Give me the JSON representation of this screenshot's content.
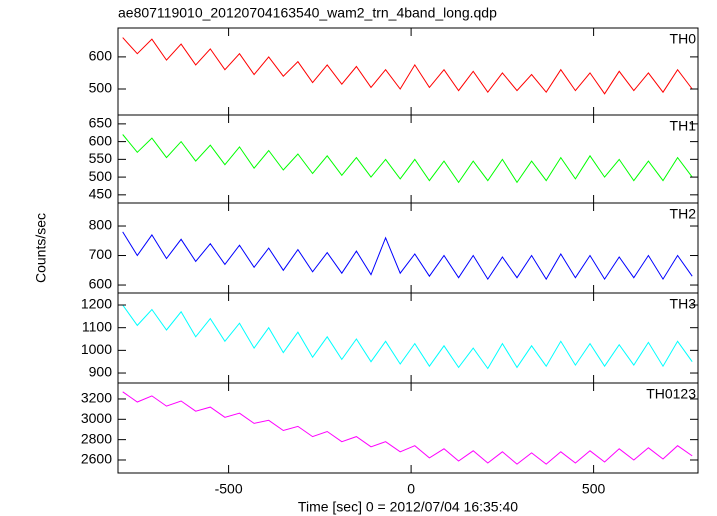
{
  "chart_data": [
    {
      "type": "line",
      "title": "ae807119010_20120704163540_wam2_trn_4band_long.qdp",
      "x": [
        -790,
        -750,
        -710,
        -670,
        -630,
        -590,
        -550,
        -510,
        -470,
        -430,
        -390,
        -350,
        -310,
        -270,
        -230,
        -190,
        -150,
        -110,
        -70,
        -30,
        10,
        50,
        90,
        130,
        170,
        210,
        250,
        290,
        330,
        370,
        410,
        450,
        490,
        530,
        570,
        610,
        650,
        690,
        730,
        770
      ],
      "series": [
        {
          "name": "TH0",
          "color": "#ff0000",
          "values": [
            660,
            610,
            655,
            590,
            640,
            575,
            625,
            560,
            610,
            545,
            600,
            540,
            585,
            520,
            575,
            515,
            570,
            505,
            560,
            500,
            575,
            505,
            560,
            495,
            555,
            490,
            550,
            495,
            545,
            490,
            560,
            495,
            550,
            485,
            555,
            495,
            550,
            490,
            560,
            500
          ]
        }
      ],
      "xlim": [
        -803,
        786
      ],
      "xticks": [
        -500,
        0,
        500
      ],
      "ylim": [
        419,
        690
      ],
      "yticks": [
        500,
        600
      ]
    },
    {
      "type": "line",
      "x": [
        -790,
        -750,
        -710,
        -670,
        -630,
        -590,
        -550,
        -510,
        -470,
        -430,
        -390,
        -350,
        -310,
        -270,
        -230,
        -190,
        -150,
        -110,
        -70,
        -30,
        10,
        50,
        90,
        130,
        170,
        210,
        250,
        290,
        330,
        370,
        410,
        450,
        490,
        530,
        570,
        610,
        650,
        690,
        730,
        770
      ],
      "series": [
        {
          "name": "TH1",
          "color": "#00ff00",
          "values": [
            620,
            570,
            610,
            555,
            600,
            545,
            590,
            535,
            585,
            525,
            575,
            520,
            565,
            510,
            560,
            505,
            555,
            500,
            550,
            495,
            550,
            490,
            545,
            485,
            545,
            490,
            550,
            485,
            545,
            490,
            555,
            495,
            560,
            500,
            550,
            490,
            545,
            490,
            555,
            500
          ]
        }
      ],
      "xlim": [
        -803,
        786
      ],
      "xticks": [
        -500,
        0,
        500
      ],
      "ylim": [
        427,
        675
      ],
      "yticks": [
        450,
        500,
        550,
        600,
        650
      ]
    },
    {
      "type": "line",
      "y_label": "Counts/sec",
      "x": [
        -790,
        -750,
        -710,
        -670,
        -630,
        -590,
        -550,
        -510,
        -470,
        -430,
        -390,
        -350,
        -310,
        -270,
        -230,
        -190,
        -150,
        -110,
        -70,
        -30,
        10,
        50,
        90,
        130,
        170,
        210,
        250,
        290,
        330,
        370,
        410,
        450,
        490,
        530,
        570,
        610,
        650,
        690,
        730,
        770
      ],
      "series": [
        {
          "name": "TH2",
          "color": "#0000ff",
          "values": [
            780,
            700,
            770,
            690,
            755,
            680,
            740,
            670,
            735,
            660,
            725,
            650,
            720,
            645,
            710,
            640,
            715,
            635,
            760,
            640,
            705,
            630,
            700,
            625,
            700,
            620,
            695,
            625,
            700,
            620,
            705,
            625,
            700,
            620,
            695,
            625,
            700,
            620,
            700,
            630
          ]
        }
      ],
      "xlim": [
        -803,
        786
      ],
      "xticks": [
        -500,
        0,
        500
      ],
      "ylim": [
        573,
        878
      ],
      "yticks": [
        600,
        700,
        800
      ]
    },
    {
      "type": "line",
      "x": [
        -790,
        -750,
        -710,
        -670,
        -630,
        -590,
        -550,
        -510,
        -470,
        -430,
        -390,
        -350,
        -310,
        -270,
        -230,
        -190,
        -150,
        -110,
        -70,
        -30,
        10,
        50,
        90,
        130,
        170,
        210,
        250,
        290,
        330,
        370,
        410,
        450,
        490,
        530,
        570,
        610,
        650,
        690,
        730,
        770
      ],
      "series": [
        {
          "name": "TH3",
          "color": "#00ffff",
          "values": [
            1200,
            1110,
            1180,
            1090,
            1170,
            1060,
            1140,
            1040,
            1120,
            1010,
            1100,
            990,
            1080,
            970,
            1060,
            960,
            1050,
            950,
            1040,
            940,
            1030,
            930,
            1020,
            925,
            1010,
            920,
            1030,
            925,
            1020,
            930,
            1040,
            935,
            1030,
            930,
            1025,
            935,
            1035,
            930,
            1040,
            950
          ]
        }
      ],
      "xlim": [
        -803,
        786
      ],
      "xticks": [
        -500,
        0,
        500
      ],
      "ylim": [
        856,
        1253
      ],
      "yticks": [
        900,
        1000,
        1100,
        1200
      ]
    },
    {
      "type": "line",
      "x_label": "Time [sec] 0 = 2012/07/04 16:35:40",
      "x": [
        -790,
        -750,
        -710,
        -670,
        -630,
        -590,
        -550,
        -510,
        -470,
        -430,
        -390,
        -350,
        -310,
        -270,
        -230,
        -190,
        -150,
        -110,
        -70,
        -30,
        10,
        50,
        90,
        130,
        170,
        210,
        250,
        290,
        330,
        370,
        410,
        450,
        490,
        530,
        570,
        610,
        650,
        690,
        730,
        770
      ],
      "series": [
        {
          "name": "TH0123",
          "color": "#ff00ff",
          "values": [
            3270,
            3170,
            3230,
            3130,
            3180,
            3080,
            3120,
            3020,
            3060,
            2960,
            2990,
            2890,
            2930,
            2830,
            2880,
            2780,
            2830,
            2730,
            2780,
            2680,
            2740,
            2620,
            2710,
            2590,
            2690,
            2570,
            2680,
            2560,
            2670,
            2560,
            2680,
            2570,
            2690,
            2580,
            2710,
            2600,
            2720,
            2610,
            2740,
            2640
          ]
        }
      ],
      "xlim": [
        -803,
        786
      ],
      "xticks": [
        -500,
        0,
        500
      ],
      "ylim": [
        2472,
        3357
      ],
      "yticks": [
        2600,
        2800,
        3000,
        3200
      ]
    }
  ]
}
